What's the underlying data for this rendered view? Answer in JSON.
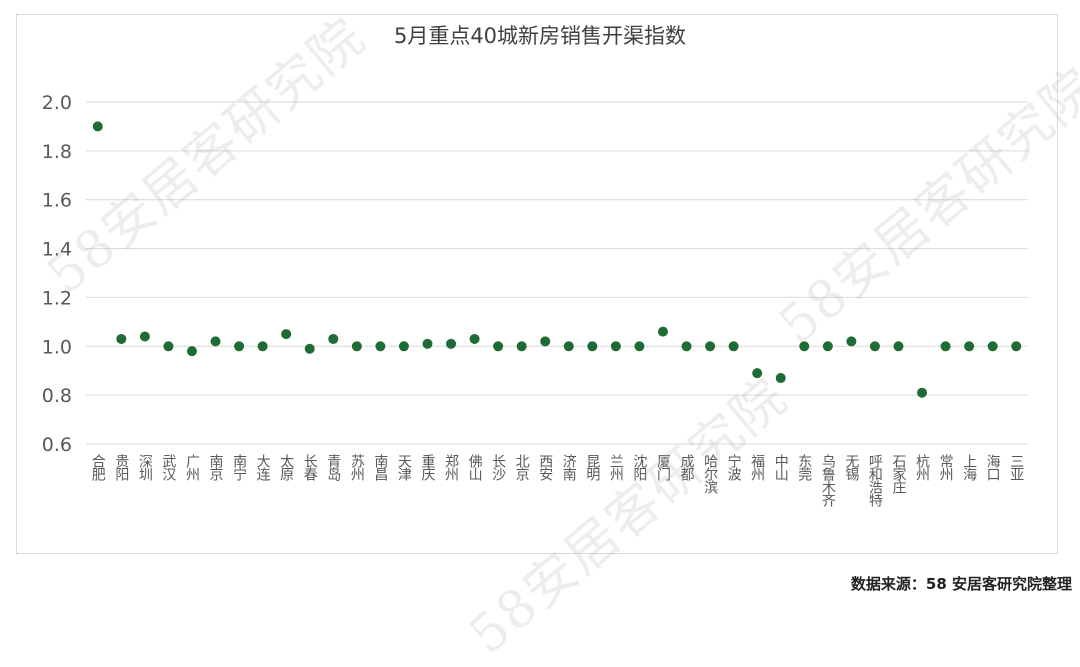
{
  "chart_data": {
    "type": "scatter",
    "title": "5月重点40城新房销售开渠指数",
    "xlabel": "",
    "ylabel": "",
    "ylim": [
      0.6,
      2.0
    ],
    "yticks": [
      "0.6",
      "0.8",
      "1.0",
      "1.2",
      "1.4",
      "1.6",
      "1.8",
      "2.0"
    ],
    "grid": true,
    "legend": "none",
    "categories": [
      "合肥",
      "贵阳",
      "深圳",
      "武汉",
      "广州",
      "南京",
      "南宁",
      "大连",
      "太原",
      "长春",
      "青岛",
      "苏州",
      "南昌",
      "天津",
      "重庆",
      "郑州",
      "佛山",
      "长沙",
      "北京",
      "西安",
      "济南",
      "昆明",
      "兰州",
      "沈阳",
      "厦门",
      "成都",
      "哈尔滨",
      "宁波",
      "福州",
      "中山",
      "东莞",
      "乌鲁木齐",
      "无锡",
      "呼和浩特",
      "石家庄",
      "杭州",
      "常州",
      "上海",
      "海口",
      "三亚"
    ],
    "series": [
      {
        "values": [
          1.9,
          1.03,
          1.04,
          1.0,
          0.98,
          1.02,
          1.0,
          1.0,
          1.05,
          0.99,
          1.03,
          1.0,
          1.0,
          1.0,
          1.01,
          1.01,
          1.03,
          1.0,
          1.0,
          1.02,
          1.0,
          1.0,
          1.0,
          1.0,
          1.06,
          1.0,
          1.0,
          1.0,
          0.89,
          0.87,
          1.0,
          1.0,
          1.02,
          1.0,
          1.0,
          0.81,
          1.0,
          1.0,
          1.0,
          1.0
        ],
        "color": "#1e6b35"
      }
    ]
  },
  "source_note": "数据来源：58 安居客研究院整理",
  "watermark": "58安居客研究院",
  "colors": {
    "grid": "#d9d9d9",
    "axis_text": "#595959",
    "point": "#1e6b35"
  }
}
